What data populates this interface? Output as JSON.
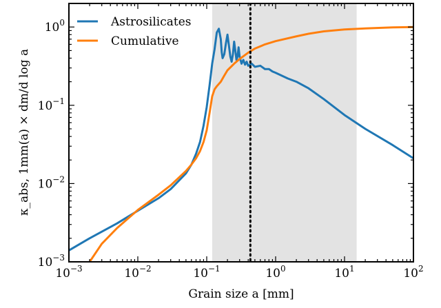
{
  "chart_data": {
    "type": "line",
    "xscale": "log",
    "yscale": "log",
    "xlabel": "Grain size a [mm]",
    "ylabel": "κ_abs, 1mm(a) × dm/d log a",
    "xlim": [
      0.001,
      100
    ],
    "ylim": [
      0.001,
      2
    ],
    "x_ticks": [
      {
        "value": 0.001,
        "base": "10",
        "exp": "−3"
      },
      {
        "value": 0.01,
        "base": "10",
        "exp": "−2"
      },
      {
        "value": 0.1,
        "base": "10",
        "exp": "−1"
      },
      {
        "value": 1,
        "base": "10",
        "exp": "0"
      },
      {
        "value": 10,
        "base": "10",
        "exp": "1"
      },
      {
        "value": 100,
        "base": "10",
        "exp": "2"
      }
    ],
    "y_ticks": [
      {
        "value": 0.001,
        "base": "10",
        "exp": "−3"
      },
      {
        "value": 0.01,
        "base": "10",
        "exp": "−2"
      },
      {
        "value": 0.1,
        "base": "10",
        "exp": "−1"
      },
      {
        "value": 1,
        "base": "10",
        "exp": "0"
      }
    ],
    "shaded_region": {
      "x": [
        0.12,
        15
      ],
      "color": "#e3e3e3"
    },
    "vertical_line": {
      "x": 0.43,
      "style": "dotted",
      "color": "#000000"
    },
    "legend_position": "top-left",
    "series": [
      {
        "name": "Astrosilicates",
        "color": "#1f77b4",
        "points": [
          [
            0.001,
            0.0014
          ],
          [
            0.002,
            0.002
          ],
          [
            0.005,
            0.0031
          ],
          [
            0.01,
            0.0045
          ],
          [
            0.02,
            0.0065
          ],
          [
            0.03,
            0.0085
          ],
          [
            0.05,
            0.0135
          ],
          [
            0.06,
            0.0175
          ],
          [
            0.07,
            0.024
          ],
          [
            0.08,
            0.034
          ],
          [
            0.09,
            0.055
          ],
          [
            0.1,
            0.095
          ],
          [
            0.11,
            0.18
          ],
          [
            0.12,
            0.34
          ],
          [
            0.13,
            0.52
          ],
          [
            0.14,
            0.85
          ],
          [
            0.15,
            0.95
          ],
          [
            0.16,
            0.7
          ],
          [
            0.165,
            0.48
          ],
          [
            0.17,
            0.4
          ],
          [
            0.18,
            0.45
          ],
          [
            0.19,
            0.62
          ],
          [
            0.2,
            0.8
          ],
          [
            0.21,
            0.58
          ],
          [
            0.22,
            0.42
          ],
          [
            0.23,
            0.36
          ],
          [
            0.24,
            0.45
          ],
          [
            0.25,
            0.65
          ],
          [
            0.26,
            0.5
          ],
          [
            0.27,
            0.38
          ],
          [
            0.28,
            0.42
          ],
          [
            0.29,
            0.55
          ],
          [
            0.3,
            0.42
          ],
          [
            0.32,
            0.34
          ],
          [
            0.34,
            0.38
          ],
          [
            0.36,
            0.33
          ],
          [
            0.38,
            0.36
          ],
          [
            0.4,
            0.32
          ],
          [
            0.45,
            0.34
          ],
          [
            0.5,
            0.31
          ],
          [
            0.6,
            0.32
          ],
          [
            0.7,
            0.29
          ],
          [
            0.8,
            0.29
          ],
          [
            0.9,
            0.27
          ],
          [
            1,
            0.26
          ],
          [
            1.5,
            0.22
          ],
          [
            2,
            0.2
          ],
          [
            3,
            0.165
          ],
          [
            5,
            0.12
          ],
          [
            10,
            0.075
          ],
          [
            20,
            0.05
          ],
          [
            50,
            0.031
          ],
          [
            100,
            0.021
          ]
        ]
      },
      {
        "name": "Cumulative",
        "color": "#ff7f0e",
        "points": [
          [
            0.002,
            0.001
          ],
          [
            0.003,
            0.0017
          ],
          [
            0.005,
            0.0027
          ],
          [
            0.01,
            0.0046
          ],
          [
            0.02,
            0.0072
          ],
          [
            0.03,
            0.0095
          ],
          [
            0.05,
            0.0145
          ],
          [
            0.06,
            0.0175
          ],
          [
            0.07,
            0.021
          ],
          [
            0.08,
            0.026
          ],
          [
            0.09,
            0.034
          ],
          [
            0.1,
            0.048
          ],
          [
            0.11,
            0.08
          ],
          [
            0.12,
            0.13
          ],
          [
            0.13,
            0.16
          ],
          [
            0.14,
            0.175
          ],
          [
            0.16,
            0.2
          ],
          [
            0.18,
            0.24
          ],
          [
            0.2,
            0.28
          ],
          [
            0.25,
            0.34
          ],
          [
            0.3,
            0.39
          ],
          [
            0.4,
            0.47
          ],
          [
            0.5,
            0.53
          ],
          [
            0.7,
            0.6
          ],
          [
            1,
            0.66
          ],
          [
            2,
            0.76
          ],
          [
            3,
            0.82
          ],
          [
            5,
            0.88
          ],
          [
            10,
            0.93
          ],
          [
            20,
            0.96
          ],
          [
            50,
            0.99
          ],
          [
            100,
            1.0
          ]
        ]
      }
    ]
  }
}
